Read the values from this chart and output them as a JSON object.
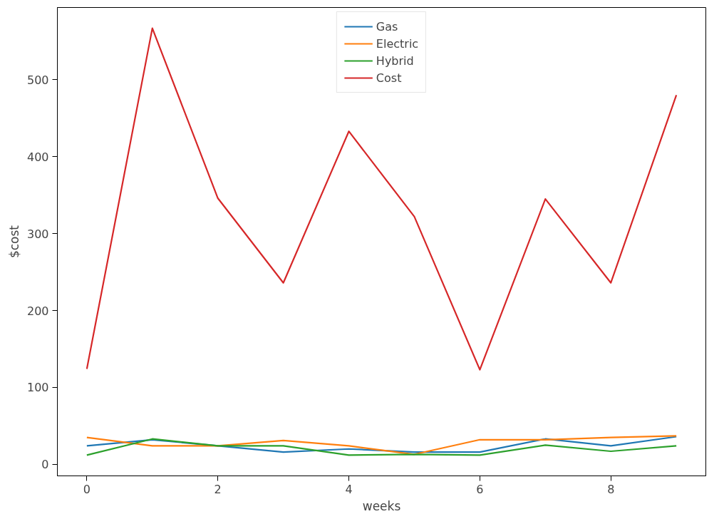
{
  "chart_data": {
    "type": "line",
    "xlabel": "weeks",
    "ylabel": "$cost",
    "x": [
      0,
      1,
      2,
      3,
      4,
      5,
      6,
      7,
      8,
      9
    ],
    "series": [
      {
        "name": "Gas",
        "color": "#1f77b4",
        "values": [
          24,
          32,
          24,
          16,
          20,
          16,
          16,
          33,
          24,
          36
        ]
      },
      {
        "name": "Electric",
        "color": "#ff7f0e",
        "values": [
          35,
          24,
          24,
          31,
          24,
          13,
          32,
          32,
          35,
          37
        ]
      },
      {
        "name": "Hybrid",
        "color": "#2ca02c",
        "values": [
          12,
          33,
          24,
          24,
          12,
          13,
          12,
          25,
          17,
          24
        ]
      },
      {
        "name": "Cost",
        "color": "#d62728",
        "values": [
          124,
          567,
          346,
          236,
          433,
          322,
          123,
          345,
          236,
          480
        ]
      }
    ],
    "xlim": [
      -0.45,
      9.45
    ],
    "ylim": [
      -15,
      594
    ],
    "xticks": [
      0,
      2,
      4,
      6,
      8
    ],
    "yticks": [
      0,
      100,
      200,
      300,
      400,
      500
    ],
    "grid": false,
    "legend": "top",
    "marker": "none",
    "line_style": "solid"
  }
}
